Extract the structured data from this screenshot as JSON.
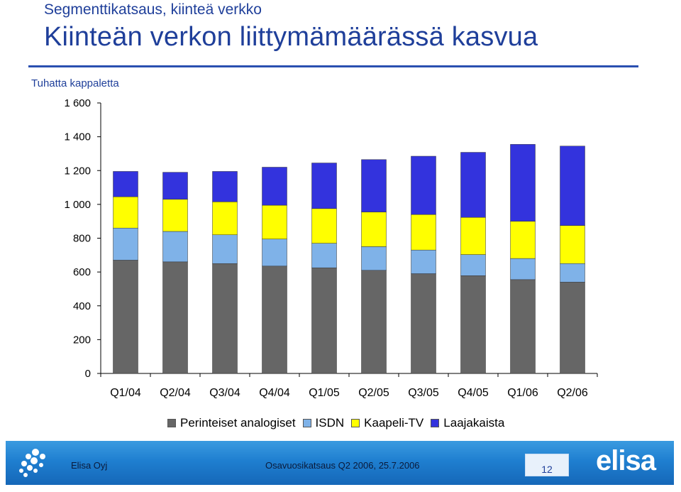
{
  "header": {
    "section_title": "Segmenttikatsaus, kiinteä verkko",
    "main_title": "Kiinteän verkon liittymämäärässä kasvua",
    "unit_label": "Tuhatta kappaletta"
  },
  "chart_data": {
    "type": "bar",
    "stacked": true,
    "categories": [
      "Q1/04",
      "Q2/04",
      "Q3/04",
      "Q4/04",
      "Q1/05",
      "Q2/05",
      "Q3/05",
      "Q4/05",
      "Q1/06",
      "Q2/06"
    ],
    "series": [
      {
        "name": "Perinteiset analogiset",
        "color": "#666666",
        "values": [
          670,
          660,
          650,
          635,
          625,
          610,
          590,
          578,
          555,
          540
        ]
      },
      {
        "name": "ISDN",
        "color": "#7fb2e8",
        "values": [
          190,
          180,
          170,
          160,
          145,
          140,
          140,
          125,
          125,
          110
        ]
      },
      {
        "name": "Kaapeli-TV",
        "color": "#ffff00",
        "values": [
          185,
          190,
          195,
          200,
          205,
          205,
          210,
          220,
          220,
          225
        ]
      },
      {
        "name": "Laajakaista",
        "color": "#3333dd",
        "values": [
          150,
          160,
          180,
          225,
          270,
          310,
          345,
          385,
          455,
          470
        ]
      }
    ],
    "ylim": [
      0,
      1600
    ],
    "yticks": [
      0,
      200,
      400,
      600,
      800,
      1000,
      1200,
      1400,
      1600
    ],
    "ytick_labels": [
      "0",
      "200",
      "400",
      "600",
      "800",
      "1 000",
      "1 200",
      "1 400",
      "1 600"
    ],
    "grid": false,
    "legend_position": "bottom"
  },
  "footer": {
    "company": "Elisa Oyj",
    "document": "Osavuosikatsaus Q2 2006, 25.7.2006",
    "page": "12",
    "brand": "elisa"
  }
}
